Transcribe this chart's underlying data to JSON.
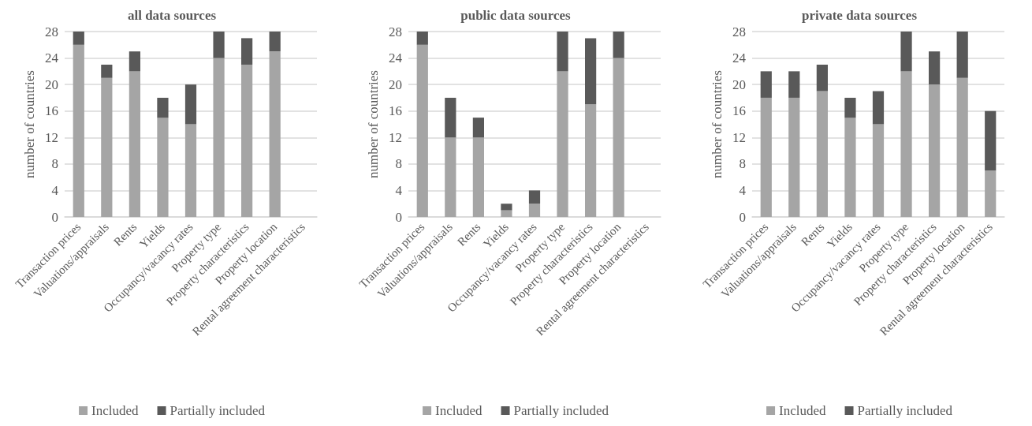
{
  "chart_data": [
    {
      "type": "bar",
      "title": "all data sources",
      "ylabel": "number of countries",
      "stacked": true,
      "grid": "y",
      "legend": "bottom",
      "categories": [
        "Transaction prices",
        "Valuations/appraisals",
        "Rents",
        "Yields",
        "Occupancy/vacancy rates",
        "Property type",
        "Property characteristics",
        "Property location",
        "Rental agreement characteristics"
      ],
      "series": [
        {
          "name": "Included",
          "color": "#a5a5a5",
          "values": [
            26,
            21,
            22,
            15,
            14,
            24,
            23,
            25,
            null
          ]
        },
        {
          "name": "Partially included",
          "color": "#595959",
          "values": [
            2,
            2,
            3,
            3,
            6,
            4,
            4,
            3,
            null
          ]
        }
      ],
      "ylim": [
        0,
        28
      ],
      "yticks": [
        0,
        4,
        8,
        12,
        16,
        20,
        24,
        28
      ]
    },
    {
      "type": "bar",
      "title": "public data sources",
      "ylabel": "number of countries",
      "stacked": true,
      "grid": "y",
      "legend": "bottom",
      "categories": [
        "Transaction prices",
        "Valuations/appraisals",
        "Rents",
        "Yields",
        "Occupancy/vacancy rates",
        "Property type",
        "Property characteristics",
        "Property location",
        "Rental agreement characteristics"
      ],
      "series": [
        {
          "name": "Included",
          "color": "#a5a5a5",
          "values": [
            26,
            12,
            12,
            1,
            2,
            22,
            17,
            24,
            null
          ]
        },
        {
          "name": "Partially included",
          "color": "#595959",
          "values": [
            2,
            6,
            3,
            1,
            2,
            6,
            10,
            4,
            null
          ]
        }
      ],
      "ylim": [
        0,
        28
      ],
      "yticks": [
        0,
        4,
        8,
        12,
        16,
        20,
        24,
        28
      ]
    },
    {
      "type": "bar",
      "title": "private data sources",
      "ylabel": "number of countries",
      "stacked": true,
      "grid": "y",
      "legend": "bottom",
      "categories": [
        "Transaction prices",
        "Valuations/appraisals",
        "Rents",
        "Yields",
        "Occupancy/vacancy rates",
        "Property type",
        "Property characteristics",
        "Property location",
        "Rental agreement characteristics"
      ],
      "series": [
        {
          "name": "Included",
          "color": "#a5a5a5",
          "values": [
            18,
            18,
            19,
            15,
            14,
            22,
            20,
            21,
            7
          ]
        },
        {
          "name": "Partially included",
          "color": "#595959",
          "values": [
            4,
            4,
            4,
            3,
            5,
            6,
            5,
            7,
            9
          ]
        }
      ],
      "ylim": [
        0,
        28
      ],
      "yticks": [
        0,
        4,
        8,
        12,
        16,
        20,
        24,
        28
      ]
    }
  ]
}
